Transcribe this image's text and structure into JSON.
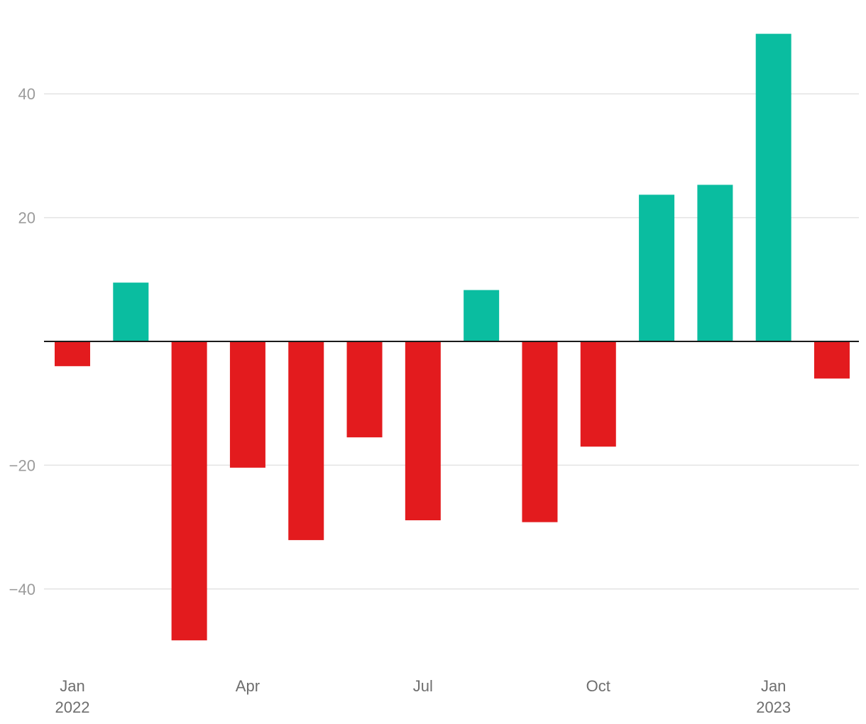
{
  "chart_data": {
    "type": "bar",
    "title": "",
    "xlabel": "",
    "ylabel": "",
    "categories": [
      "2022-01",
      "2022-02",
      "2022-03",
      "2022-04",
      "2022-05",
      "2022-06",
      "2022-07",
      "2022-08",
      "2022-09",
      "2022-10",
      "2022-11",
      "2022-12",
      "2023-01",
      "2023-02"
    ],
    "values": [
      -4,
      9.5,
      -48.3,
      -20.4,
      -32.1,
      -15.5,
      -28.9,
      8.3,
      -29.2,
      -17,
      23.7,
      25.3,
      49.7,
      -6
    ],
    "ylim": [
      -52,
      53
    ],
    "y_ticks": [
      {
        "value": -40,
        "label": "−40"
      },
      {
        "value": -20,
        "label": "−20"
      },
      {
        "value": 20,
        "label": "20"
      },
      {
        "value": 40,
        "label": "40"
      }
    ],
    "x_ticks": [
      {
        "category": "2022-01",
        "month": "Jan",
        "year": "2022"
      },
      {
        "category": "2022-04",
        "month": "Apr",
        "year": ""
      },
      {
        "category": "2022-07",
        "month": "Jul",
        "year": ""
      },
      {
        "category": "2022-10",
        "month": "Oct",
        "year": ""
      },
      {
        "category": "2023-01",
        "month": "Jan",
        "year": "2023"
      }
    ],
    "grid": true,
    "legend": "none",
    "colors": {
      "positive": "#0abda0",
      "negative": "#e31b1e",
      "grid": "#e3e3e3",
      "zero_line": "#1a1a1a"
    }
  }
}
